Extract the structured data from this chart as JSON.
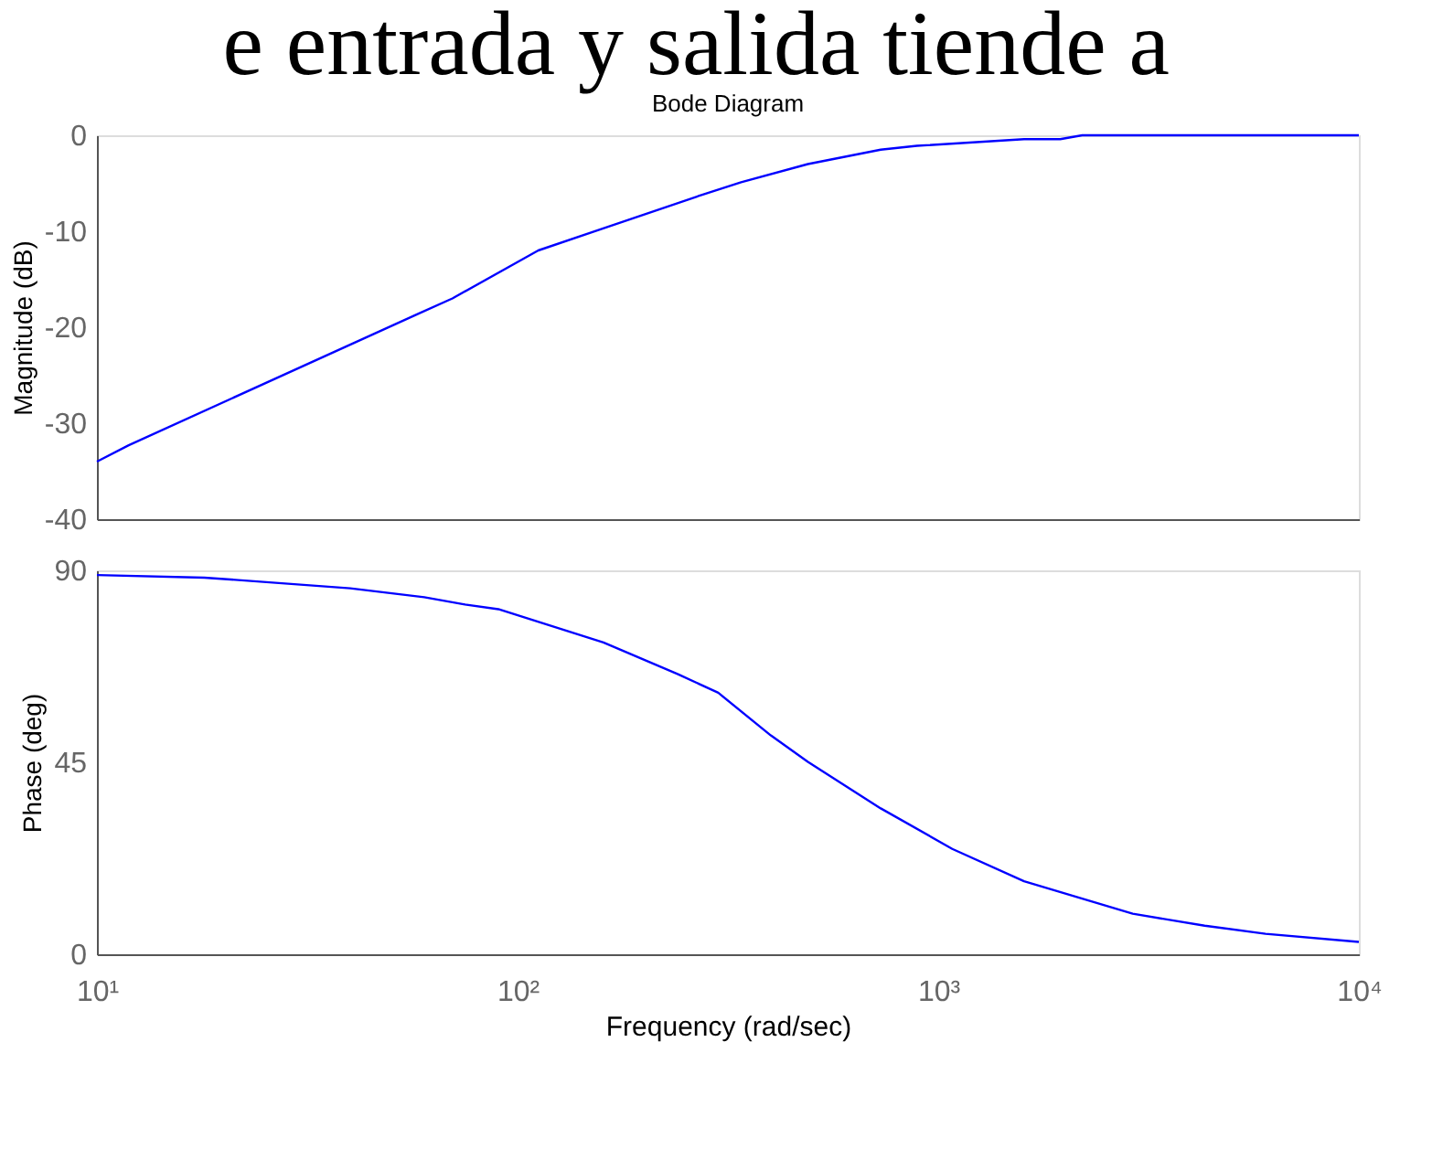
{
  "chart_data": [
    {
      "type": "line",
      "title": "Bode Diagram",
      "ylabel": "Magnitude (dB)",
      "annotations": [
        "e entrada y salida tiende a"
      ],
      "x": [
        10,
        11.9,
        58,
        70,
        112,
        279,
        340,
        490,
        730,
        890,
        1600,
        1950,
        2200,
        10000
      ],
      "series": [
        {
          "color": "#0000ff",
          "values": [
            -34,
            -32.3,
            -18.6,
            -17,
            -12,
            -6.1,
            -4.9,
            -3.0,
            -1.5,
            -1.1,
            -0.4,
            -0.4,
            0,
            0
          ]
        }
      ],
      "log": "x",
      "xlim": [
        10,
        10000
      ],
      "xticks": [
        {
          "value": 10,
          "label": null
        },
        {
          "value": 100,
          "label": null
        },
        {
          "value": 1000,
          "label": null
        },
        {
          "value": 10000,
          "label": null
        }
      ],
      "ylim": [
        -40,
        0
      ],
      "yticks": [
        -40,
        -30,
        -20,
        -10,
        0
      ],
      "tick_labels": "y",
      "grid": false
    },
    {
      "type": "line",
      "xlabel": "Frequency  (rad/sec)",
      "ylabel": "Phase (deg)",
      "x": [
        10,
        18,
        40,
        60,
        75,
        90,
        160,
        240,
        300,
        400,
        490,
        730,
        1080,
        1600,
        2900,
        4300,
        6000,
        10000
      ],
      "series": [
        {
          "color": "#0000ff",
          "values": [
            88.9,
            88.3,
            85.8,
            83.7,
            82,
            80.9,
            73.1,
            65.7,
            61.3,
            51.3,
            45.1,
            34.2,
            24.7,
            17.1,
            9.5,
            6.7,
            4.8,
            2.9
          ]
        }
      ],
      "log": "x",
      "xlim": [
        10,
        10000
      ],
      "xticks": [
        {
          "value": 10,
          "label": "10¹"
        },
        {
          "value": 100,
          "label": "10²"
        },
        {
          "value": 1000,
          "label": "10³"
        },
        {
          "value": 10000,
          "label": "10⁴"
        }
      ],
      "ylim": [
        0,
        90
      ],
      "yticks": [
        0,
        45,
        90
      ],
      "grid": false
    }
  ]
}
